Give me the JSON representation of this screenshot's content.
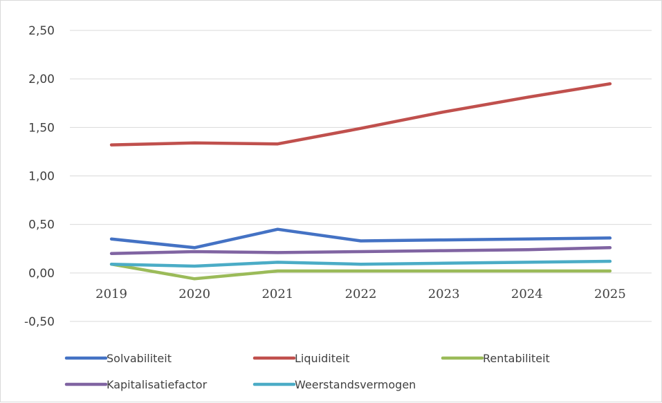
{
  "chart_data": {
    "type": "line",
    "title": "",
    "xlabel": "",
    "ylabel": "",
    "categories": [
      "2019",
      "2020",
      "2021",
      "2022",
      "2023",
      "2024",
      "2025"
    ],
    "ylim": [
      -0.5,
      2.5
    ],
    "yticks": [
      -0.5,
      0,
      0.5,
      1.0,
      1.5,
      2.0,
      2.5
    ],
    "ytick_labels": [
      "-0,50",
      "0,00",
      "0,50",
      "1,00",
      "1,50",
      "2,00",
      "2,50"
    ],
    "grid": "horizontal",
    "legend_position": "bottom",
    "series": [
      {
        "name": "Solvabiliteit",
        "color": "#4472C4",
        "values": [
          0.35,
          0.26,
          0.45,
          0.33,
          0.34,
          0.35,
          0.36
        ]
      },
      {
        "name": "Liquiditeit",
        "color": "#C0504D",
        "values": [
          1.32,
          1.34,
          1.33,
          1.49,
          1.66,
          1.81,
          1.95
        ]
      },
      {
        "name": "Rentabiliteit",
        "color": "#9BBB59",
        "values": [
          0.09,
          -0.06,
          0.02,
          0.02,
          0.02,
          0.02,
          0.02
        ]
      },
      {
        "name": "Kapitalisatiefactor",
        "color": "#8064A2",
        "values": [
          0.2,
          0.22,
          0.21,
          0.22,
          0.23,
          0.24,
          0.26
        ]
      },
      {
        "name": "Weerstandsvermogen",
        "color": "#4BACC6",
        "values": [
          0.09,
          0.07,
          0.11,
          0.09,
          0.1,
          0.11,
          0.12
        ]
      }
    ]
  }
}
